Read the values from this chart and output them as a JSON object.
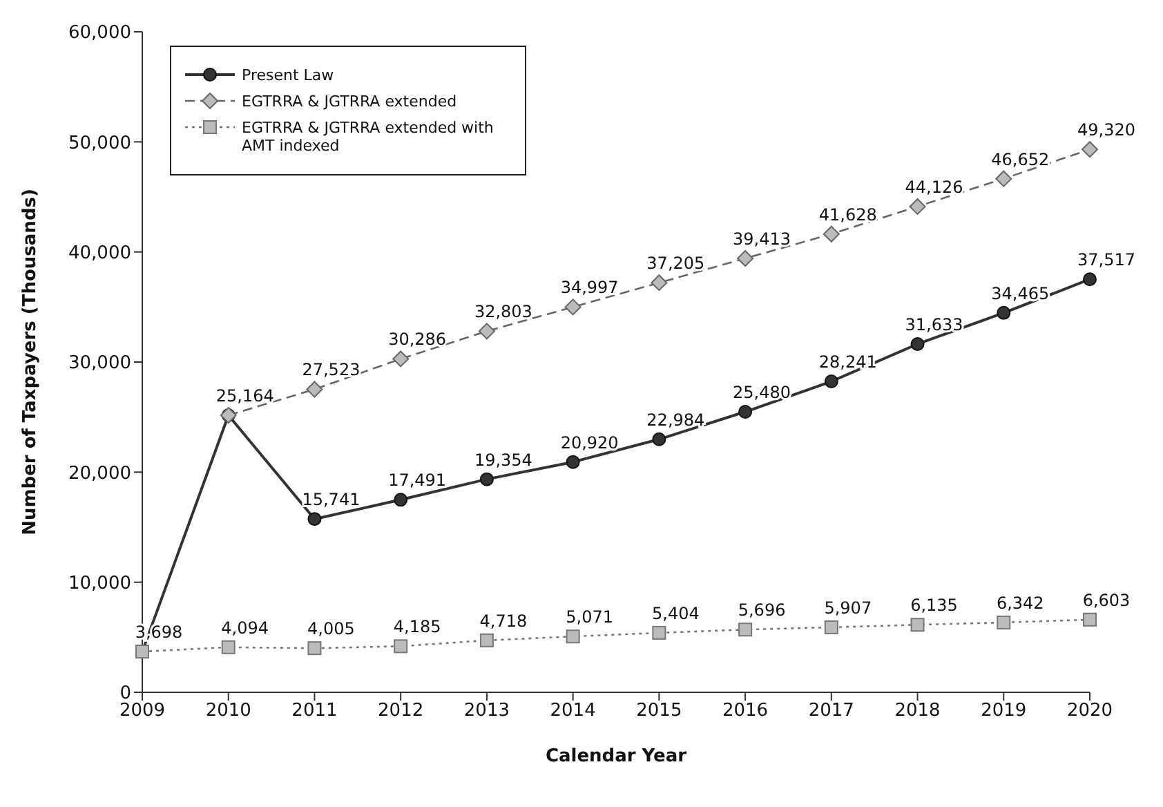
{
  "chart_data": {
    "type": "line",
    "xlabel": "Calendar Year",
    "ylabel": "Number of Taxpayers (Thousands)",
    "categories": [
      "2009",
      "2010",
      "2011",
      "2012",
      "2013",
      "2014",
      "2015",
      "2016",
      "2017",
      "2018",
      "2019",
      "2020"
    ],
    "series": [
      {
        "name": "Present Law",
        "color": "#333333",
        "marker": "circle",
        "line_style": "solid",
        "values": [
          3698,
          25164,
          15741,
          17491,
          19354,
          20920,
          22984,
          25480,
          28241,
          31633,
          34465,
          37517
        ],
        "value_labels": [
          "3,698",
          "25,164",
          "15,741",
          "17,491",
          "19,354",
          "20,920",
          "22,984",
          "25,480",
          "28,241",
          "31,633",
          "34,465",
          "37,517"
        ]
      },
      {
        "name": "EGTRRA & JGTRRA extended",
        "color": "#666666",
        "marker": "diamond",
        "line_style": "dashed",
        "values": [
          null,
          25164,
          27523,
          30286,
          32803,
          34997,
          37205,
          39413,
          41628,
          44126,
          46652,
          49320
        ],
        "value_labels": [
          null,
          null,
          "27,523",
          "30,286",
          "32,803",
          "34,997",
          "37,205",
          "39,413",
          "41,628",
          "44,126",
          "46,652",
          "49,320"
        ]
      },
      {
        "name": "EGTRRA & JGTRRA extended with AMT indexed",
        "color": "#777777",
        "marker": "square",
        "line_style": "dotted",
        "values": [
          3698,
          4094,
          4005,
          4185,
          4718,
          5071,
          5404,
          5696,
          5907,
          6135,
          6342,
          6603
        ],
        "value_labels": [
          null,
          "4,094",
          "4,005",
          "4,185",
          "4,718",
          "5,071",
          "5,404",
          "5,696",
          "5,907",
          "6,135",
          "6,342",
          "6,603"
        ]
      }
    ],
    "ylim": [
      0,
      60000
    ],
    "yticks": [
      0,
      {
        "value": 10000,
        "label": "10,000"
      },
      {
        "value": 20000,
        "label": "20,000"
      },
      {
        "value": 30000,
        "label": "30,000"
      },
      {
        "value": 40000,
        "label": "40,000"
      },
      {
        "value": 50000,
        "label": "50,000"
      },
      {
        "value": 60000,
        "label": "60,000"
      }
    ],
    "grid": false,
    "legend": "top left"
  }
}
